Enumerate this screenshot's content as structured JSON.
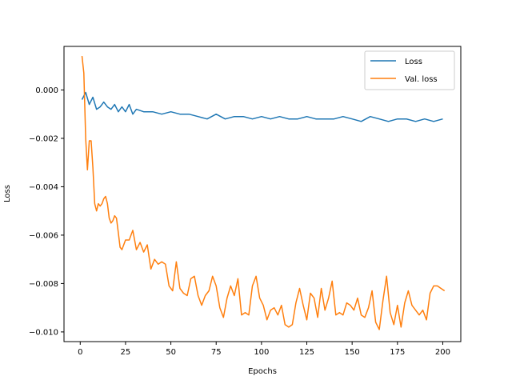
{
  "chart_data": {
    "type": "line",
    "xlabel": "Epochs",
    "ylabel": "Loss",
    "xlim": [
      -8.95,
      209.95
    ],
    "ylim": [
      -0.0104,
      0.0018
    ],
    "xticks": [
      0,
      25,
      50,
      75,
      100,
      125,
      150,
      175,
      200
    ],
    "xtick_labels": [
      "0",
      "25",
      "50",
      "75",
      "100",
      "125",
      "150",
      "175",
      "200"
    ],
    "yticks": [
      0.0,
      -0.002,
      -0.004,
      -0.006,
      -0.008,
      -0.01
    ],
    "ytick_labels": [
      "0.000",
      "−0.002",
      "−0.004",
      "−0.006",
      "−0.008",
      "−0.010"
    ],
    "legend": {
      "position": "top-right",
      "entries": [
        "Loss",
        "Val. loss"
      ]
    },
    "grid": false,
    "series": [
      {
        "name": "Loss",
        "color": "#1f77b4",
        "x": [
          1,
          3,
          5,
          7,
          9,
          11,
          13,
          15,
          17,
          19,
          21,
          23,
          25,
          27,
          29,
          31,
          35,
          40,
          45,
          50,
          55,
          60,
          65,
          70,
          75,
          80,
          85,
          90,
          95,
          100,
          105,
          110,
          115,
          120,
          125,
          130,
          135,
          140,
          145,
          150,
          155,
          160,
          165,
          170,
          175,
          180,
          185,
          190,
          195,
          200
        ],
        "y": [
          -0.0004,
          -0.0001,
          -0.0006,
          -0.0003,
          -0.0008,
          -0.0007,
          -0.0005,
          -0.0007,
          -0.0008,
          -0.0006,
          -0.0009,
          -0.0007,
          -0.0009,
          -0.0006,
          -0.001,
          -0.0008,
          -0.0009,
          -0.0009,
          -0.001,
          -0.0009,
          -0.001,
          -0.001,
          -0.0011,
          -0.0012,
          -0.001,
          -0.0012,
          -0.0011,
          -0.0011,
          -0.0012,
          -0.0011,
          -0.0012,
          -0.0011,
          -0.0012,
          -0.0012,
          -0.0011,
          -0.0012,
          -0.0012,
          -0.0012,
          -0.0011,
          -0.0012,
          -0.0013,
          -0.0011,
          -0.0012,
          -0.0013,
          -0.0012,
          -0.0012,
          -0.0013,
          -0.0012,
          -0.0013,
          -0.0012
        ]
      },
      {
        "name": "Val. loss",
        "color": "#ff7f0e",
        "x": [
          1,
          2,
          3,
          4,
          5,
          6,
          7,
          8,
          9,
          10,
          11,
          12,
          13,
          14,
          15,
          16,
          17,
          18,
          19,
          20,
          21,
          22,
          23,
          25,
          27,
          29,
          31,
          33,
          35,
          37,
          39,
          41,
          43,
          45,
          47,
          49,
          51,
          53,
          55,
          57,
          59,
          61,
          63,
          65,
          67,
          69,
          71,
          73,
          75,
          77,
          79,
          81,
          83,
          85,
          87,
          89,
          91,
          93,
          95,
          97,
          99,
          101,
          103,
          105,
          107,
          109,
          111,
          113,
          115,
          117,
          119,
          121,
          123,
          125,
          127,
          129,
          131,
          133,
          135,
          137,
          139,
          141,
          143,
          145,
          147,
          149,
          151,
          153,
          155,
          157,
          159,
          161,
          163,
          165,
          167,
          169,
          171,
          173,
          175,
          177,
          179,
          181,
          183,
          185,
          187,
          189,
          191,
          193,
          195,
          197,
          199,
          201
        ],
        "y": [
          0.0014,
          0.0007,
          -0.002,
          -0.0033,
          -0.0021,
          -0.0021,
          -0.0032,
          -0.0047,
          -0.005,
          -0.0047,
          -0.0048,
          -0.0047,
          -0.0045,
          -0.0044,
          -0.0047,
          -0.0053,
          -0.0055,
          -0.0054,
          -0.0052,
          -0.0053,
          -0.0059,
          -0.0065,
          -0.0066,
          -0.0062,
          -0.0062,
          -0.0058,
          -0.0066,
          -0.0063,
          -0.0067,
          -0.0064,
          -0.0074,
          -0.007,
          -0.0072,
          -0.0071,
          -0.0072,
          -0.0081,
          -0.0083,
          -0.0071,
          -0.0082,
          -0.0084,
          -0.0085,
          -0.0078,
          -0.0077,
          -0.0085,
          -0.0089,
          -0.0085,
          -0.0083,
          -0.0077,
          -0.0081,
          -0.009,
          -0.0094,
          -0.0086,
          -0.0081,
          -0.0085,
          -0.0078,
          -0.0093,
          -0.0092,
          -0.0093,
          -0.0081,
          -0.0077,
          -0.0086,
          -0.0089,
          -0.0095,
          -0.0091,
          -0.009,
          -0.0093,
          -0.0089,
          -0.0097,
          -0.0098,
          -0.0097,
          -0.0088,
          -0.0082,
          -0.0089,
          -0.0095,
          -0.0084,
          -0.0086,
          -0.0094,
          -0.0082,
          -0.0091,
          -0.0086,
          -0.0079,
          -0.0093,
          -0.0092,
          -0.0093,
          -0.0088,
          -0.0089,
          -0.0091,
          -0.0086,
          -0.0093,
          -0.0094,
          -0.009,
          -0.0083,
          -0.0096,
          -0.0099,
          -0.0087,
          -0.0077,
          -0.0092,
          -0.0097,
          -0.0089,
          -0.0098,
          -0.0088,
          -0.0083,
          -0.0089,
          -0.0091,
          -0.0093,
          -0.0091,
          -0.0095,
          -0.0084,
          -0.0081,
          -0.0081,
          -0.0082,
          -0.0083
        ]
      }
    ]
  }
}
